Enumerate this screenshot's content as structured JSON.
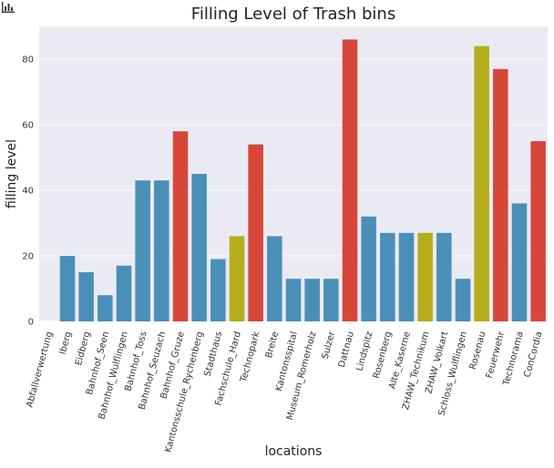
{
  "app": {
    "icon": "bar-chart-icon"
  },
  "colors": {
    "background": "#EAEAF2",
    "grid": "#FFFFFF",
    "blue": "#4A8FB8",
    "red": "#D6473A",
    "olive": "#B5AD1C"
  },
  "chart_data": {
    "type": "bar",
    "title": "Filling Level of Trash bins",
    "xlabel": "locations",
    "ylabel": "filling level",
    "ylim": [
      0,
      90
    ],
    "yticks": [
      0,
      20,
      40,
      60,
      80
    ],
    "grid": true,
    "categories": [
      "Abfallverwertung",
      "Iberg",
      "Eidberg",
      "Bahnhof_Seen",
      "Bahnhof_Wulflingen",
      "Bahnhof_Toss",
      "Bahnhof_Seuzach",
      "Bahnhof_Gruze",
      "Kantonsschule_Rychenberg",
      "Stadthaus",
      "Fachschule_Hard",
      "Technopark",
      "Breite",
      "Kantonsspital",
      "Museum_Romerholz",
      "Sulzer",
      "Dattnau",
      "Lindspitz",
      "Rosenberg",
      "Alte_Kaserne",
      "ZHAW_Technikum",
      "ZHAW_Volkart",
      "Schloss_Wulflingen",
      "Rosenau",
      "Feuerwehr",
      "Technorama",
      "ConCordia"
    ],
    "values": [
      0,
      20,
      15,
      8,
      17,
      43,
      43,
      58,
      45,
      19,
      26,
      54,
      26,
      13,
      13,
      13,
      86,
      32,
      27,
      27,
      27,
      27,
      13,
      84,
      77,
      36,
      55
    ],
    "bar_colors": [
      "blue",
      "blue",
      "blue",
      "blue",
      "blue",
      "blue",
      "blue",
      "red",
      "blue",
      "blue",
      "olive",
      "red",
      "blue",
      "blue",
      "blue",
      "blue",
      "red",
      "blue",
      "blue",
      "blue",
      "olive",
      "blue",
      "blue",
      "olive",
      "red",
      "blue",
      "red"
    ]
  }
}
